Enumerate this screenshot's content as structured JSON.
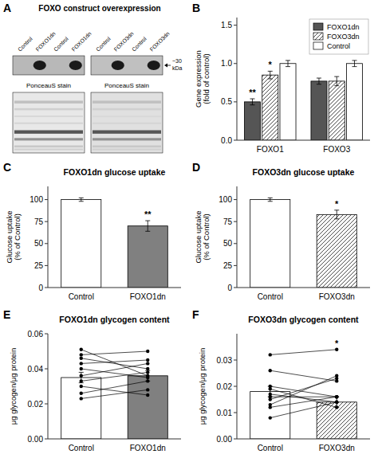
{
  "chart_data": [
    {
      "type": "blot",
      "title": "FOXO construct overexpression",
      "categories": [
        "Control",
        "FOXO1dn",
        "Control",
        "FOXO1dn",
        "Control",
        "FOXO3dn",
        "Control",
        "FOXO3dn"
      ],
      "annotations": [
        {
          "text": "A"
        },
        {
          "text": "~30"
        },
        {
          "text": "kDa"
        },
        {
          "text": "PonceauS stain"
        },
        {
          "text": "PonceauS stain"
        }
      ]
    },
    {
      "type": "bar",
      "ylabel": "Gene expression\n(fold of control)",
      "categories": [
        "FOXO1",
        "FOXO3"
      ],
      "series": [
        {
          "name": "FOXO1dn",
          "color": "#555555",
          "values": [
            0.5,
            0.77
          ],
          "errors": [
            0.04,
            0.04
          ]
        },
        {
          "name": "FOXO3dn",
          "color": "white",
          "line_style": "hatched",
          "values": [
            0.85,
            0.77
          ],
          "errors": [
            0.05,
            0.06
          ]
        },
        {
          "name": "Control",
          "color": "white",
          "values": [
            1.0,
            1.0
          ],
          "errors": [
            0.04,
            0.04
          ]
        }
      ],
      "ylim": [
        0.0,
        1.6
      ],
      "yticks": [
        {
          "value": 0.0,
          "label": "0.0"
        },
        {
          "value": 0.5,
          "label": "0.5"
        },
        {
          "value": 1.0,
          "label": "1.0"
        },
        {
          "value": 1.5,
          "label": "1.5"
        }
      ],
      "legend": "top-right",
      "grid": false,
      "annotations": [
        {
          "text": "B"
        },
        {
          "text": "**",
          "series": 0,
          "category": 0
        },
        {
          "text": "*",
          "series": 1,
          "category": 0
        }
      ]
    },
    {
      "type": "bar",
      "title": "FOXO1dn glucose uptake",
      "ylabel": "Glucose uptake\n(% of Control)",
      "categories": [
        "Control",
        "FOXO1dn"
      ],
      "values": [
        100,
        70
      ],
      "errors": [
        2,
        6
      ],
      "colors": [
        "white",
        "#808080"
      ],
      "ylim": [
        0,
        115
      ],
      "yticks": [
        0,
        25,
        50,
        75,
        100
      ],
      "grid": false,
      "annotations": [
        {
          "text": "C"
        },
        {
          "text": "**",
          "category": 1
        }
      ]
    },
    {
      "type": "bar",
      "title": "FOXO3dn glucose uptake",
      "ylabel": "Glucose uptake\n(% of Control)",
      "categories": [
        "Control",
        "FOXO3dn"
      ],
      "values": [
        100,
        83
      ],
      "errors": [
        2,
        5
      ],
      "colors": [
        "white",
        "white"
      ],
      "line_style": [
        "solid",
        "hatched"
      ],
      "ylim": [
        0,
        115
      ],
      "yticks": [
        0,
        25,
        50,
        75,
        100
      ],
      "grid": false,
      "annotations": [
        {
          "text": "D"
        },
        {
          "text": "*",
          "category": 1
        }
      ]
    },
    {
      "type": "bar",
      "title": "FOXO1dn glycogen content",
      "ylabel": "μg glycogen/μg protein",
      "categories": [
        "Control",
        "FOXO1dn"
      ],
      "values": [
        0.035,
        0.036
      ],
      "errors": [
        0.003,
        0.003
      ],
      "colors": [
        "white",
        "#808080"
      ],
      "ylim": [
        0.0,
        0.06
      ],
      "yticks": [
        {
          "value": 0.0,
          "label": "0.00"
        },
        {
          "value": 0.02,
          "label": "0.02"
        },
        {
          "value": 0.04,
          "label": "0.04"
        },
        {
          "value": 0.06,
          "label": "0.06"
        }
      ],
      "grid": false,
      "series": [
        {
          "type": "line",
          "marker": "circle",
          "color": "black",
          "values": [
            0.023,
            0.028
          ]
        },
        {
          "type": "line",
          "marker": "circle",
          "color": "black",
          "values": [
            0.026,
            0.033
          ]
        },
        {
          "type": "line",
          "marker": "circle",
          "color": "black",
          "values": [
            0.03,
            0.025
          ]
        },
        {
          "type": "line",
          "marker": "circle",
          "color": "black",
          "values": [
            0.033,
            0.038
          ]
        },
        {
          "type": "line",
          "marker": "circle",
          "color": "black",
          "values": [
            0.036,
            0.043
          ]
        },
        {
          "type": "line",
          "marker": "circle",
          "color": "black",
          "values": [
            0.04,
            0.035
          ]
        },
        {
          "type": "line",
          "marker": "circle",
          "color": "black",
          "values": [
            0.043,
            0.045
          ]
        },
        {
          "type": "line",
          "marker": "circle",
          "color": "black",
          "values": [
            0.046,
            0.04
          ]
        },
        {
          "type": "line",
          "marker": "circle",
          "color": "black",
          "values": [
            0.048,
            0.05
          ]
        },
        {
          "type": "line",
          "marker": "circle",
          "color": "black",
          "values": [
            0.051,
            0.036
          ]
        }
      ],
      "annotations": [
        {
          "text": "E"
        }
      ]
    },
    {
      "type": "bar",
      "title": "FOXO3dn glycogen content",
      "ylabel": "μg glycogen/μg protein",
      "categories": [
        "Control",
        "FOXO3dn"
      ],
      "values": [
        0.018,
        0.014
      ],
      "errors": [
        0.002,
        0.002
      ],
      "colors": [
        "white",
        "white"
      ],
      "line_style": [
        "solid",
        "hatched"
      ],
      "ylim": [
        0.0,
        0.04
      ],
      "yticks": [
        {
          "value": 0.0,
          "label": "0.00"
        },
        {
          "value": 0.01,
          "label": "0.01"
        },
        {
          "value": 0.02,
          "label": "0.02"
        },
        {
          "value": 0.03,
          "label": "0.03"
        }
      ],
      "grid": false,
      "series": [
        {
          "type": "line",
          "marker": "circle",
          "color": "black",
          "values": [
            0.008,
            0.014
          ]
        },
        {
          "type": "line",
          "marker": "circle",
          "color": "black",
          "values": [
            0.012,
            0.016
          ]
        },
        {
          "type": "line",
          "marker": "circle",
          "color": "black",
          "values": [
            0.013,
            0.024
          ]
        },
        {
          "type": "line",
          "marker": "circle",
          "color": "black",
          "values": [
            0.015,
            0.023
          ]
        },
        {
          "type": "line",
          "marker": "circle",
          "color": "black",
          "values": [
            0.016,
            0.016
          ]
        },
        {
          "type": "line",
          "marker": "circle",
          "color": "black",
          "values": [
            0.017,
            0.014
          ]
        },
        {
          "type": "line",
          "marker": "circle",
          "color": "black",
          "values": [
            0.019,
            0.012
          ]
        },
        {
          "type": "line",
          "marker": "circle",
          "color": "black",
          "values": [
            0.02,
            0.016
          ]
        },
        {
          "type": "line",
          "marker": "circle",
          "color": "black",
          "values": [
            0.026,
            0.022
          ]
        },
        {
          "type": "line",
          "marker": "circle",
          "color": "black",
          "values": [
            0.032,
            0.034
          ]
        }
      ],
      "annotations": [
        {
          "text": "F"
        },
        {
          "text": "*",
          "category": 1
        }
      ]
    }
  ]
}
